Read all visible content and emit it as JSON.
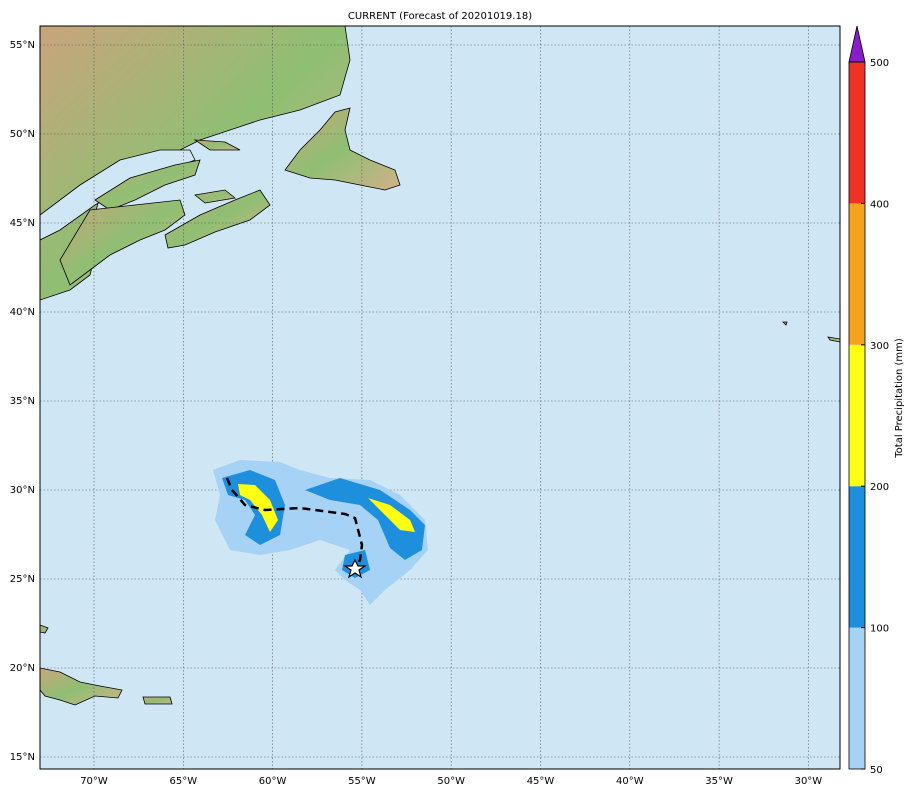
{
  "title": "CURRENT (Forecast of 20201019.18)",
  "map": {
    "lon_labels": [
      "70°W",
      "65°W",
      "60°W",
      "55°W",
      "50°W",
      "45°W",
      "40°W",
      "35°W",
      "30°W"
    ],
    "lat_labels": [
      "55°N",
      "50°N",
      "45°N",
      "40°N",
      "35°N",
      "30°N",
      "25°N",
      "20°N",
      "15°N"
    ]
  },
  "colorbar": {
    "label": "Total Precipitation (mm)",
    "ticks": [
      50,
      100,
      200,
      300,
      400,
      500
    ],
    "colors": [
      "#a6d2f5",
      "#1e8fdc",
      "#ffff14",
      "#f7a21e",
      "#ee3324"
    ],
    "extend_color": "#8a1ccc"
  }
}
